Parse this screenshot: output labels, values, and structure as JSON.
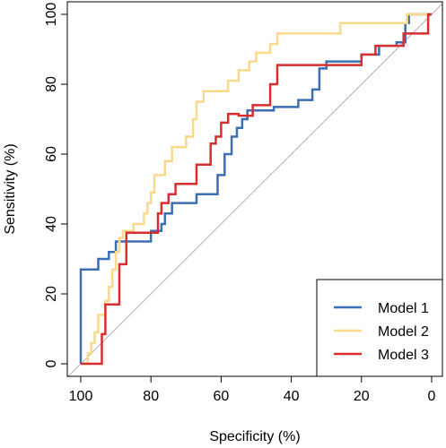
{
  "chart_data": {
    "type": "line",
    "title": "",
    "xlabel": "Specificity (%)",
    "ylabel": "Sensitivity (%)",
    "xlim": [
      100,
      0
    ],
    "ylim": [
      0,
      100
    ],
    "x_axis_reversed": true,
    "x_ticks": [
      "100",
      "80",
      "60",
      "40",
      "20",
      "0"
    ],
    "y_ticks": [
      "0",
      "20",
      "40",
      "60",
      "80",
      "100"
    ],
    "grid": false,
    "reference_line": {
      "from": [
        100,
        0
      ],
      "to": [
        0,
        100
      ],
      "color": "#b0b0b0"
    },
    "legend": {
      "position": "bottom-right"
    },
    "series": [
      {
        "name": "Model 1",
        "color": "#3a6fb5",
        "points": [
          [
            100,
            0
          ],
          [
            100,
            27
          ],
          [
            95,
            27
          ],
          [
            95,
            30
          ],
          [
            92,
            30
          ],
          [
            92,
            32
          ],
          [
            90,
            32
          ],
          [
            90,
            35
          ],
          [
            80,
            35
          ],
          [
            80,
            38
          ],
          [
            77,
            38
          ],
          [
            77,
            40
          ],
          [
            76,
            40
          ],
          [
            76,
            43
          ],
          [
            74,
            43
          ],
          [
            74,
            46
          ],
          [
            67,
            46
          ],
          [
            67,
            48.5
          ],
          [
            61,
            48.5
          ],
          [
            61,
            54
          ],
          [
            59,
            54
          ],
          [
            59,
            60
          ],
          [
            57,
            60
          ],
          [
            57,
            65
          ],
          [
            55.5,
            65
          ],
          [
            55.5,
            67.5
          ],
          [
            54,
            67.5
          ],
          [
            54,
            70
          ],
          [
            52.5,
            70
          ],
          [
            52.5,
            72.5
          ],
          [
            45,
            72.5
          ],
          [
            45,
            73.5
          ],
          [
            38,
            73.5
          ],
          [
            38,
            75.5
          ],
          [
            34,
            75.5
          ],
          [
            34,
            78.5
          ],
          [
            32,
            78.5
          ],
          [
            32,
            84.5
          ],
          [
            30,
            84.5
          ],
          [
            30,
            86.5
          ],
          [
            20,
            86.5
          ],
          [
            20,
            88.5
          ],
          [
            15,
            88.5
          ],
          [
            15,
            91
          ],
          [
            10,
            91
          ],
          [
            10,
            92
          ],
          [
            7.5,
            92
          ],
          [
            7.5,
            97.5
          ],
          [
            6.5,
            97.5
          ],
          [
            6.5,
            100
          ],
          [
            0,
            100
          ]
        ]
      },
      {
        "name": "Model 2",
        "color": "#f9d98a",
        "points": [
          [
            100,
            0
          ],
          [
            98,
            0
          ],
          [
            98,
            3
          ],
          [
            97,
            3
          ],
          [
            97,
            6
          ],
          [
            96,
            6
          ],
          [
            96,
            9
          ],
          [
            95,
            9
          ],
          [
            95,
            14
          ],
          [
            93,
            14
          ],
          [
            93,
            18
          ],
          [
            92,
            18
          ],
          [
            92,
            22
          ],
          [
            91,
            22
          ],
          [
            91,
            27
          ],
          [
            90,
            27
          ],
          [
            90,
            32
          ],
          [
            89,
            32
          ],
          [
            89,
            36
          ],
          [
            88,
            36
          ],
          [
            88,
            38
          ],
          [
            85,
            38
          ],
          [
            85,
            40
          ],
          [
            82,
            40
          ],
          [
            82,
            43
          ],
          [
            81,
            43
          ],
          [
            81,
            46
          ],
          [
            80,
            46
          ],
          [
            80,
            49
          ],
          [
            79,
            49
          ],
          [
            79,
            54
          ],
          [
            76,
            54
          ],
          [
            76,
            58
          ],
          [
            74,
            58
          ],
          [
            74,
            62
          ],
          [
            70,
            62
          ],
          [
            70,
            65
          ],
          [
            68,
            65
          ],
          [
            68,
            70
          ],
          [
            67,
            70
          ],
          [
            67,
            75
          ],
          [
            65,
            75
          ],
          [
            65,
            78
          ],
          [
            58,
            78
          ],
          [
            58,
            81
          ],
          [
            55,
            81
          ],
          [
            55,
            84
          ],
          [
            52,
            84
          ],
          [
            52,
            86.5
          ],
          [
            50,
            86.5
          ],
          [
            50,
            89
          ],
          [
            46,
            89
          ],
          [
            46,
            91.5
          ],
          [
            44,
            91.5
          ],
          [
            44,
            94.5
          ],
          [
            26,
            94.5
          ],
          [
            26,
            97.5
          ],
          [
            7,
            97.5
          ],
          [
            7,
            100
          ],
          [
            0,
            100
          ]
        ]
      },
      {
        "name": "Model 3",
        "color": "#d72f2f",
        "points": [
          [
            100,
            0
          ],
          [
            94,
            0
          ],
          [
            94,
            8.5
          ],
          [
            93,
            8.5
          ],
          [
            93,
            17
          ],
          [
            89,
            17
          ],
          [
            89,
            28.5
          ],
          [
            87,
            28.5
          ],
          [
            87,
            37.5
          ],
          [
            78,
            37.5
          ],
          [
            78,
            43
          ],
          [
            77,
            43
          ],
          [
            77,
            46
          ],
          [
            75,
            46
          ],
          [
            75,
            48.5
          ],
          [
            73,
            48.5
          ],
          [
            73,
            51.5
          ],
          [
            67,
            51.5
          ],
          [
            67,
            57
          ],
          [
            63,
            57
          ],
          [
            63,
            63
          ],
          [
            61.5,
            63
          ],
          [
            61.5,
            65
          ],
          [
            60,
            65
          ],
          [
            60,
            69
          ],
          [
            58,
            69
          ],
          [
            58,
            71.5
          ],
          [
            55,
            71.5
          ],
          [
            55,
            71
          ],
          [
            51,
            71
          ],
          [
            51,
            74
          ],
          [
            46,
            74
          ],
          [
            46,
            80
          ],
          [
            44,
            80
          ],
          [
            44,
            85.5
          ],
          [
            20,
            85.5
          ],
          [
            20,
            88.5
          ],
          [
            16,
            88.5
          ],
          [
            16,
            91
          ],
          [
            8,
            91
          ],
          [
            8,
            94.5
          ],
          [
            1,
            94.5
          ],
          [
            1,
            100
          ],
          [
            0,
            100
          ]
        ]
      }
    ]
  }
}
